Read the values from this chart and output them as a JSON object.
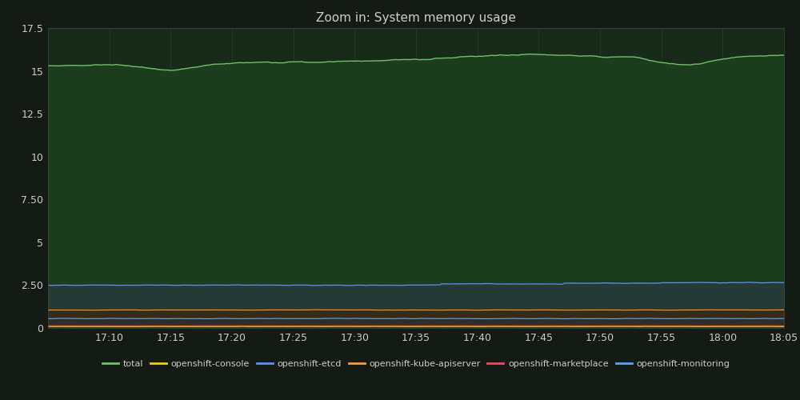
{
  "title": "Zoom in: System memory usage",
  "background_color": "#141a14",
  "plot_bg_color": "#1a2a1a",
  "grid_color": "#3a4a3a",
  "text_color": "#cccccc",
  "ylim": [
    0,
    17.5
  ],
  "yticks": [
    0,
    2.5,
    5,
    7.5,
    10,
    12.5,
    15,
    17.5
  ],
  "ytick_labels": [
    "0",
    "2.50",
    "5",
    "7.50",
    "10",
    "12.5",
    "15",
    "17.5"
  ],
  "x_tick_labels": [
    "17:10",
    "17:15",
    "17:20",
    "17:25",
    "17:30",
    "17:35",
    "17:40",
    "17:45",
    "17:50",
    "17:55",
    "18:00",
    "18:05"
  ],
  "total_color": "#73bf69",
  "console_color": "#f2cc0c",
  "etcd_color": "#5794f2",
  "kube_color": "#ff9830",
  "marketplace_color": "#f2495c",
  "monitoring_color": "#5794f2",
  "legend_items": [
    {
      "label": "total",
      "color": "#73bf69"
    },
    {
      "label": "openshift-console",
      "color": "#f2cc0c"
    },
    {
      "label": "openshift-etcd",
      "color": "#5794f2"
    },
    {
      "label": "openshift-kube-apiserver",
      "color": "#ff9830"
    },
    {
      "label": "openshift-marketplace",
      "color": "#f2495c"
    },
    {
      "label": "openshift-monitoring",
      "color": "#5aa3f0"
    }
  ]
}
